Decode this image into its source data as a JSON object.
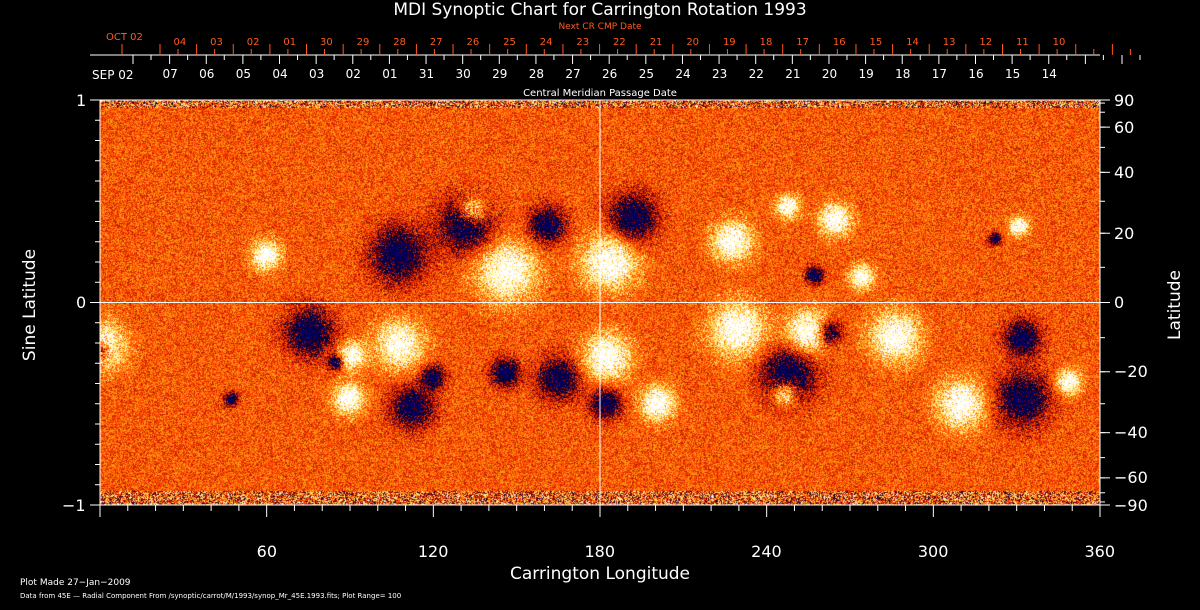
{
  "chart_data": {
    "type": "heatmap",
    "title": "MDI Synoptic Chart for Carrington Rotation 1993",
    "xlabel": "Carrington Longitude",
    "ylabel_left": "Sine Latitude",
    "ylabel_right": "Latitude",
    "xlim": [
      0,
      360
    ],
    "ylim": [
      -1,
      1
    ],
    "x_ticks": [
      "60",
      "120",
      "180",
      "240",
      "300",
      "360"
    ],
    "x_tick_values": [
      60,
      120,
      180,
      240,
      300,
      360
    ],
    "y_left_ticks": [
      "1",
      "0",
      "−1"
    ],
    "y_left_values": [
      1,
      0,
      -1
    ],
    "y_right_ticks": [
      "90",
      "60",
      "40",
      "20",
      "0",
      "−20",
      "−40",
      "−60",
      "−90"
    ],
    "y_right_values": [
      90,
      60,
      40,
      20,
      0,
      -20,
      -40,
      -60,
      -90
    ],
    "top_axis_title": "Central Meridian Passage Date",
    "top_axis_start": "SEP 02",
    "top_axis_dates": [
      "07",
      "06",
      "05",
      "04",
      "03",
      "02",
      "01",
      "31",
      "30",
      "29",
      "28",
      "27",
      "26",
      "25",
      "24",
      "23",
      "22",
      "21",
      "20",
      "19",
      "18",
      "17",
      "16",
      "15",
      "14"
    ],
    "next_cr_title": "Next CR CMP Date",
    "next_cr_start": "OCT 02",
    "next_cr_dates": [
      "04",
      "03",
      "02",
      "01",
      "30",
      "29",
      "28",
      "27",
      "26",
      "25",
      "24",
      "23",
      "22",
      "21",
      "20",
      "19",
      "18",
      "17",
      "16",
      "15",
      "14",
      "13",
      "12",
      "11",
      "10"
    ],
    "colors": {
      "positive": "#ffffff",
      "negative": "#000040",
      "background": "#ff4a00",
      "next_cr": "#ff5a1e"
    }
  },
  "footer": {
    "plot_made": "Plot Made 27−Jan−2009",
    "data_from": "Data from 45E — Radial Component From /synoptic/carrot/M/1993/synop_Mr_45E.1993.fits; Plot Range=  100"
  }
}
